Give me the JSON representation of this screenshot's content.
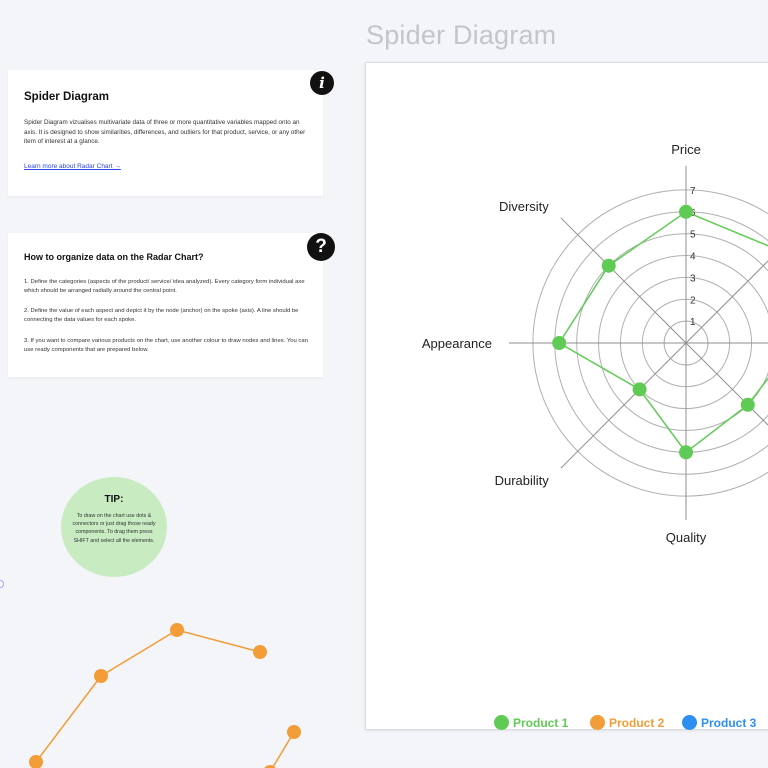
{
  "page": {
    "title": "Spider Diagram"
  },
  "info_card": {
    "title": "Spider Diagram",
    "body": "Spider Diagram vizualises multivariate data of three or more quantitative variables mapped onto an axis. It is designed to show similarities, differences, and outliers for that product, service, or any other item of interest at a glance.",
    "link": "Learn more about Radar Chart →",
    "badge": "i"
  },
  "howto_card": {
    "title": "How to organize data on the Radar Chart?",
    "badge": "?",
    "steps": [
      "1. Define the categories (aspects of the product/ service/ idea analyzed). Every category form individual axe which should be arranged radially around the central point.",
      "2. Define the value of each aspect and depict it by the node (anchor) on the spoke (axis). A line should be connecting the data values for each spoke.",
      "3. If you want to compare various products on the chart, use another colour to draw nodes and lines. You can use ready components that are prepared below."
    ]
  },
  "tip": {
    "title": "TIP:",
    "body": "To draw on the chart use dots & connectors or just drag those ready components. To drag them press SHIFT and select all the elements."
  },
  "colors": {
    "product1": "#5fcb54",
    "product2": "#f29d38",
    "product3": "#2d8ff0",
    "grid": "#b0b0b0",
    "spoke": "#8f8f8f"
  },
  "chart_data": {
    "type": "radar",
    "axes": [
      "Price",
      "",
      "",
      "",
      "Quality",
      "Durability",
      "Appearance",
      "Diversity"
    ],
    "ticks": [
      "1",
      "2",
      "3",
      "4",
      "5",
      "6",
      "7"
    ],
    "rmax": 7.5,
    "series": [
      {
        "name": "Product 1",
        "values": [
          6,
          6,
          5,
          4,
          5,
          3,
          5.8,
          5
        ]
      }
    ],
    "legend": [
      "Product 1",
      "Product 2",
      "Product 3"
    ]
  },
  "doodle": {
    "orange_points": [
      [
        36,
        162
      ],
      [
        101,
        76
      ],
      [
        177,
        30
      ],
      [
        260,
        52
      ]
    ],
    "orange_point_2": [
      [
        294,
        132
      ],
      [
        270,
        172
      ]
    ]
  }
}
